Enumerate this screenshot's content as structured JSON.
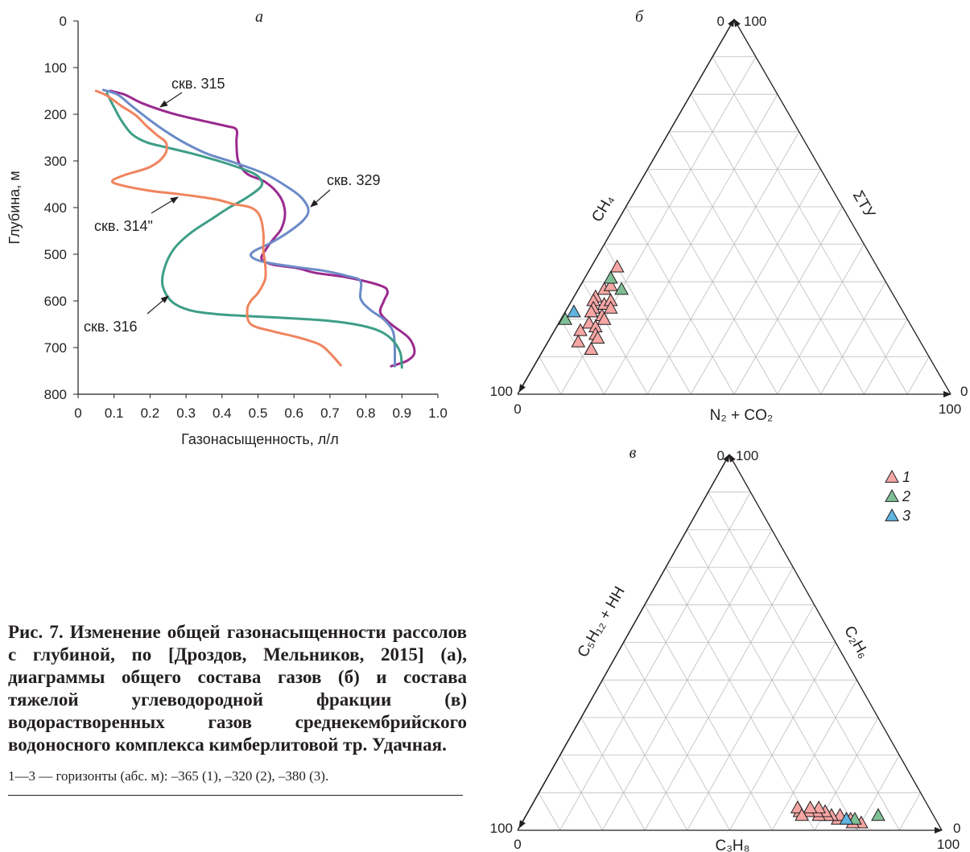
{
  "chart_data": [
    {
      "id": "a",
      "type": "line",
      "panel_label": "а",
      "xlabel": "Газонасыщенность, л/л",
      "ylabel": "Глубина, м",
      "xlim": [
        0,
        1.0
      ],
      "ylim": [
        800,
        0
      ],
      "x_ticks": [
        "0",
        "0.1",
        "0.2",
        "0.3",
        "0.4",
        "0.5",
        "0.6",
        "0.7",
        "0.8",
        "0.9",
        "1.0"
      ],
      "y_ticks": [
        "0",
        "100",
        "200",
        "300",
        "400",
        "500",
        "600",
        "700",
        "800"
      ],
      "series": [
        {
          "name": "скв. 315",
          "color": "#9b2a8f",
          "points": [
            [
              0.09,
              150
            ],
            [
              0.13,
              158
            ],
            [
              0.18,
              177
            ],
            [
              0.26,
              198
            ],
            [
              0.34,
              213
            ],
            [
              0.41,
              225
            ],
            [
              0.44,
              233
            ],
            [
              0.44,
              260
            ],
            [
              0.445,
              300
            ],
            [
              0.47,
              328
            ],
            [
              0.52,
              345
            ],
            [
              0.56,
              375
            ],
            [
              0.575,
              410
            ],
            [
              0.565,
              445
            ],
            [
              0.54,
              470
            ],
            [
              0.52,
              492
            ],
            [
              0.51,
              510
            ],
            [
              0.54,
              522
            ],
            [
              0.61,
              530
            ],
            [
              0.66,
              540
            ],
            [
              0.75,
              550
            ],
            [
              0.84,
              567
            ],
            [
              0.86,
              580
            ],
            [
              0.85,
              600
            ],
            [
              0.84,
              625
            ],
            [
              0.87,
              650
            ],
            [
              0.92,
              680
            ],
            [
              0.935,
              710
            ],
            [
              0.915,
              728
            ],
            [
              0.87,
              740
            ]
          ]
        },
        {
          "name": "скв. 329",
          "color": "#6c8bc8",
          "points": [
            [
              0.07,
              148
            ],
            [
              0.11,
              158
            ],
            [
              0.15,
              183
            ],
            [
              0.2,
              213
            ],
            [
              0.25,
              240
            ],
            [
              0.3,
              263
            ],
            [
              0.36,
              285
            ],
            [
              0.44,
              305
            ],
            [
              0.52,
              328
            ],
            [
              0.58,
              355
            ],
            [
              0.62,
              378
            ],
            [
              0.64,
              405
            ],
            [
              0.625,
              428
            ],
            [
              0.58,
              455
            ],
            [
              0.53,
              478
            ],
            [
              0.49,
              493
            ],
            [
              0.48,
              503
            ],
            [
              0.5,
              513
            ],
            [
              0.54,
              520
            ],
            [
              0.61,
              528
            ],
            [
              0.68,
              535
            ],
            [
              0.75,
              547
            ],
            [
              0.785,
              558
            ],
            [
              0.785,
              595
            ],
            [
              0.81,
              618
            ],
            [
              0.85,
              640
            ],
            [
              0.875,
              665
            ],
            [
              0.88,
              700
            ],
            [
              0.88,
              740
            ]
          ]
        },
        {
          "name": "скв. 316",
          "color": "#3e9e87",
          "points": [
            [
              0.08,
              155
            ],
            [
              0.1,
              185
            ],
            [
              0.12,
              213
            ],
            [
              0.15,
              243
            ],
            [
              0.19,
              260
            ],
            [
              0.24,
              270
            ],
            [
              0.31,
              283
            ],
            [
              0.39,
              300
            ],
            [
              0.46,
              318
            ],
            [
              0.5,
              333
            ],
            [
              0.51,
              353
            ],
            [
              0.47,
              378
            ],
            [
              0.42,
              400
            ],
            [
              0.37,
              425
            ],
            [
              0.31,
              456
            ],
            [
              0.265,
              490
            ],
            [
              0.24,
              530
            ],
            [
              0.235,
              567
            ],
            [
              0.26,
              601
            ],
            [
              0.31,
              620
            ],
            [
              0.38,
              628
            ],
            [
              0.46,
              632
            ],
            [
              0.56,
              636
            ],
            [
              0.67,
              641
            ],
            [
              0.76,
              649
            ],
            [
              0.83,
              662
            ],
            [
              0.87,
              681
            ],
            [
              0.895,
              710
            ],
            [
              0.9,
              743
            ]
          ]
        },
        {
          "name": "скв. 314\"",
          "color": "#f0845e",
          "points": [
            [
              0.05,
              150
            ],
            [
              0.08,
              160
            ],
            [
              0.12,
              182
            ],
            [
              0.16,
              202
            ],
            [
              0.19,
              225
            ],
            [
              0.22,
              245
            ],
            [
              0.245,
              262
            ],
            [
              0.24,
              288
            ],
            [
              0.2,
              313
            ],
            [
              0.13,
              330
            ],
            [
              0.095,
              343
            ],
            [
              0.12,
              352
            ],
            [
              0.2,
              364
            ],
            [
              0.29,
              372
            ],
            [
              0.38,
              382
            ],
            [
              0.43,
              392
            ],
            [
              0.48,
              400
            ],
            [
              0.505,
              418
            ],
            [
              0.515,
              455
            ],
            [
              0.515,
              493
            ],
            [
              0.52,
              520
            ],
            [
              0.52,
              553
            ],
            [
              0.5,
              583
            ],
            [
              0.48,
              600
            ],
            [
              0.47,
              620
            ],
            [
              0.48,
              650
            ],
            [
              0.54,
              665
            ],
            [
              0.61,
              678
            ],
            [
              0.67,
              693
            ],
            [
              0.7,
              712
            ],
            [
              0.73,
              738
            ]
          ]
        }
      ],
      "annotations": [
        "скв. 315",
        "скв. 329",
        "скв. 314\"",
        "скв. 316"
      ]
    },
    {
      "id": "b",
      "type": "scatter",
      "subtype": "ternary",
      "panel_label": "б",
      "axis_labels": {
        "left": "CH₄",
        "right": "ΣТУ",
        "bottom": "N₂ + CO₂"
      },
      "corner_labels": {
        "top_0": "0",
        "top_100": "100",
        "left_100": "100",
        "left_0": "0",
        "right_0": "0",
        "right_100": "100"
      },
      "grid": "ternary 10%",
      "coordinates": "fractions of CH4, N2+CO2, ΣТУ",
      "series": [
        {
          "name": "1",
          "color": "#f6a6a4",
          "points": [
            [
              0.34,
              0.6,
              0.06
            ],
            [
              0.31,
              0.63,
              0.06
            ],
            [
              0.28,
              0.66,
              0.06
            ],
            [
              0.26,
              0.69,
              0.05
            ],
            [
              0.25,
              0.7,
              0.05
            ],
            [
              0.23,
              0.71,
              0.06
            ],
            [
              0.22,
              0.72,
              0.06
            ],
            [
              0.19,
              0.74,
              0.07
            ],
            [
              0.17,
              0.77,
              0.06
            ],
            [
              0.14,
              0.79,
              0.07
            ],
            [
              0.29,
              0.64,
              0.07
            ],
            [
              0.24,
              0.68,
              0.08
            ],
            [
              0.21,
              0.7,
              0.09
            ],
            [
              0.18,
              0.73,
              0.09
            ],
            [
              0.16,
              0.74,
              0.1
            ],
            [
              0.25,
              0.66,
              0.09
            ],
            [
              0.2,
              0.7,
              0.1
            ],
            [
              0.12,
              0.77,
              0.11
            ],
            [
              0.23,
              0.67,
              0.1
            ],
            [
              0.15,
              0.74,
              0.11
            ]
          ]
        },
        {
          "name": "2",
          "color": "#7fbf95",
          "points": [
            [
              0.31,
              0.63,
              0.06
            ],
            [
              0.28,
              0.62,
              0.1
            ],
            [
              0.2,
              0.79,
              0.01
            ]
          ]
        },
        {
          "name": "3",
          "color": "#5fb4e0",
          "points": [
            [
              0.22,
              0.76,
              0.02
            ]
          ]
        }
      ]
    },
    {
      "id": "v",
      "type": "scatter",
      "subtype": "ternary",
      "panel_label": "в",
      "axis_labels": {
        "left": "C₅H₁₂ + HH",
        "right": "C₂H₆",
        "bottom": "C₃H₈"
      },
      "corner_labels": {
        "top_0": "0",
        "top_100": "100",
        "left_100": "100",
        "left_0": "0",
        "right_0": "0",
        "right_100": "100"
      },
      "grid": "ternary 10%",
      "coordinates": "fractions of C5H12+HH, C3H8, C2H6",
      "series": [
        {
          "name": "1",
          "color": "#f6a6a4",
          "points": [
            [
              0.02,
              0.18,
              0.8
            ],
            [
              0.02,
              0.2,
              0.78
            ],
            [
              0.03,
              0.2,
              0.77
            ],
            [
              0.03,
              0.23,
              0.74
            ],
            [
              0.04,
              0.22,
              0.74
            ],
            [
              0.04,
              0.24,
              0.72
            ],
            [
              0.04,
              0.25,
              0.71
            ],
            [
              0.05,
              0.25,
              0.7
            ],
            [
              0.04,
              0.27,
              0.69
            ],
            [
              0.05,
              0.27,
              0.68
            ],
            [
              0.06,
              0.26,
              0.68
            ],
            [
              0.05,
              0.29,
              0.66
            ],
            [
              0.06,
              0.28,
              0.66
            ],
            [
              0.05,
              0.31,
              0.64
            ],
            [
              0.06,
              0.31,
              0.63
            ],
            [
              0.04,
              0.31,
              0.65
            ]
          ]
        },
        {
          "name": "2",
          "color": "#7fbf95",
          "points": [
            [
              0.04,
              0.13,
              0.83
            ],
            [
              0.03,
              0.19,
              0.78
            ]
          ]
        },
        {
          "name": "3",
          "color": "#5fb4e0",
          "points": [
            [
              0.03,
              0.21,
              0.76
            ]
          ]
        }
      ],
      "legend": {
        "position": "top-right",
        "items": [
          "1",
          "2",
          "3"
        ]
      }
    }
  ],
  "caption": {
    "title": "Рис. 7. Изменение общей газонасыщенности рассолов с глубиной, по [Дроздов, Мельников, 2015] (а), диаграммы общего состава газов (б) и состава тяжелой углеводородной фракции (в) водорастворенных газов среднекембрийского водоносного комплекса кимберлитовой тр. Удачная.",
    "legend_text": "1—3 — горизонты (абс. м): –365 (1), –320 (2), –380 (3)."
  }
}
